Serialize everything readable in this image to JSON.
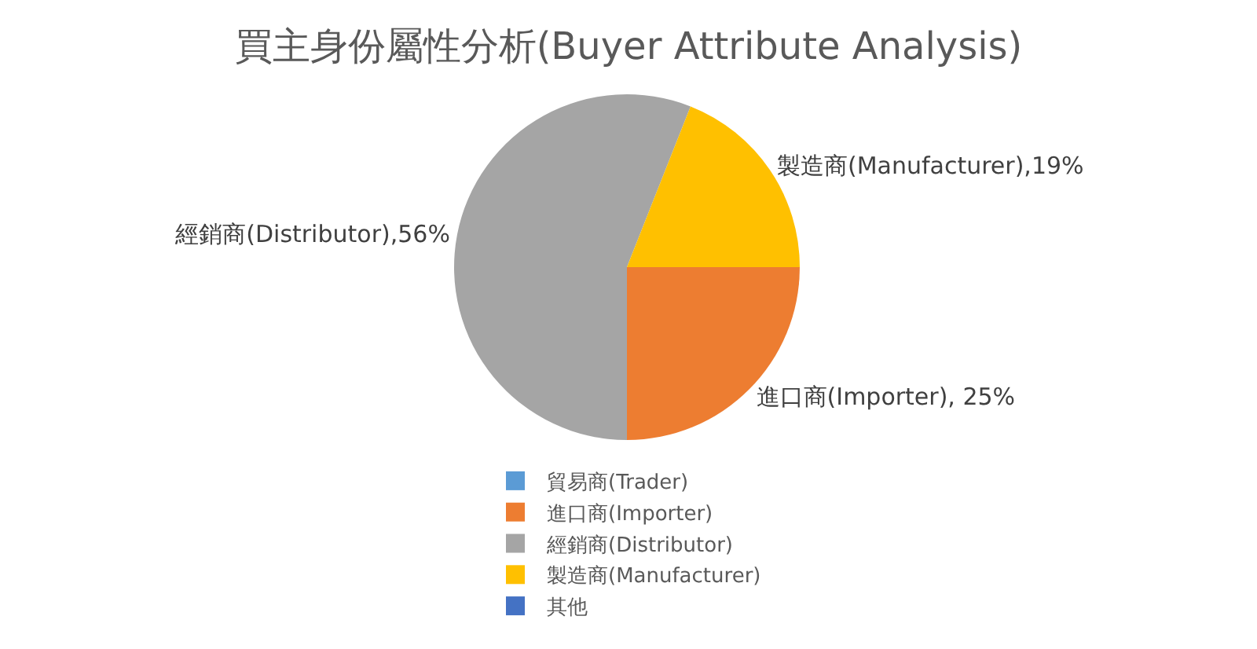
{
  "chart_data": {
    "type": "pie",
    "title": "買主身份屬性分析(Buyer Attribute Analysis)",
    "categories": [
      "貿易商(Trader)",
      "進口商(Importer)",
      "經銷商(Distributor)",
      "製造商(Manufacturer)",
      "其他"
    ],
    "values": [
      0,
      25,
      56,
      19,
      0
    ],
    "colors": [
      "#5b9bd5",
      "#ed7d31",
      "#a5a5a5",
      "#ffc000",
      "#4472c4"
    ],
    "value_labels": [
      null,
      "進口商(Importer), 25%",
      "經銷商(Distributor),56%",
      "製造商(Manufacturer),19%",
      null
    ],
    "legend": "bottom"
  }
}
